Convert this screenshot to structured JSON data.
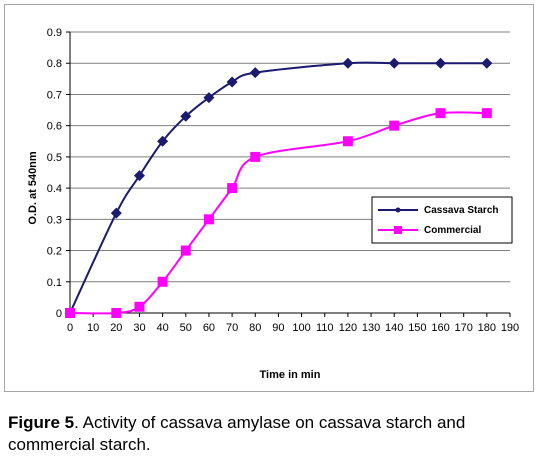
{
  "chart_data": {
    "type": "line",
    "title": "",
    "xlabel": "Time in min",
    "ylabel": "O.D. at 540nm",
    "xlim": [
      0,
      190
    ],
    "ylim": [
      0,
      0.9
    ],
    "x_ticks": [
      "0",
      "10",
      "20",
      "30",
      "40",
      "50",
      "60",
      "70",
      "80",
      "90",
      "100",
      "110",
      "120",
      "130",
      "140",
      "150",
      "160",
      "170",
      "180",
      "190"
    ],
    "y_ticks": [
      "0",
      "0.1",
      "0.2",
      "0.3",
      "0.4",
      "0.5",
      "0.6",
      "0.7",
      "0.8",
      "0.9"
    ],
    "grid": "horizontal",
    "legend_position": "right",
    "series": [
      {
        "name": "Cassava Starch",
        "color": "#1a1a6e",
        "marker": "diamond",
        "x": [
          0,
          20,
          30,
          40,
          50,
          60,
          70,
          80,
          120,
          140,
          160,
          180
        ],
        "y": [
          0,
          0.32,
          0.44,
          0.55,
          0.63,
          0.69,
          0.74,
          0.77,
          0.8,
          0.8,
          0.8,
          0.8
        ]
      },
      {
        "name": "Commercial",
        "color": "#ff00ff",
        "marker": "square",
        "x": [
          0,
          20,
          30,
          40,
          50,
          60,
          70,
          80,
          120,
          140,
          160,
          180
        ],
        "y": [
          0,
          0,
          0.02,
          0.1,
          0.2,
          0.3,
          0.4,
          0.5,
          0.55,
          0.6,
          0.64,
          0.64
        ]
      }
    ]
  },
  "caption": {
    "label": "Figure 5",
    "text": ". Activity of cassava amylase on cassava starch and commercial starch."
  }
}
